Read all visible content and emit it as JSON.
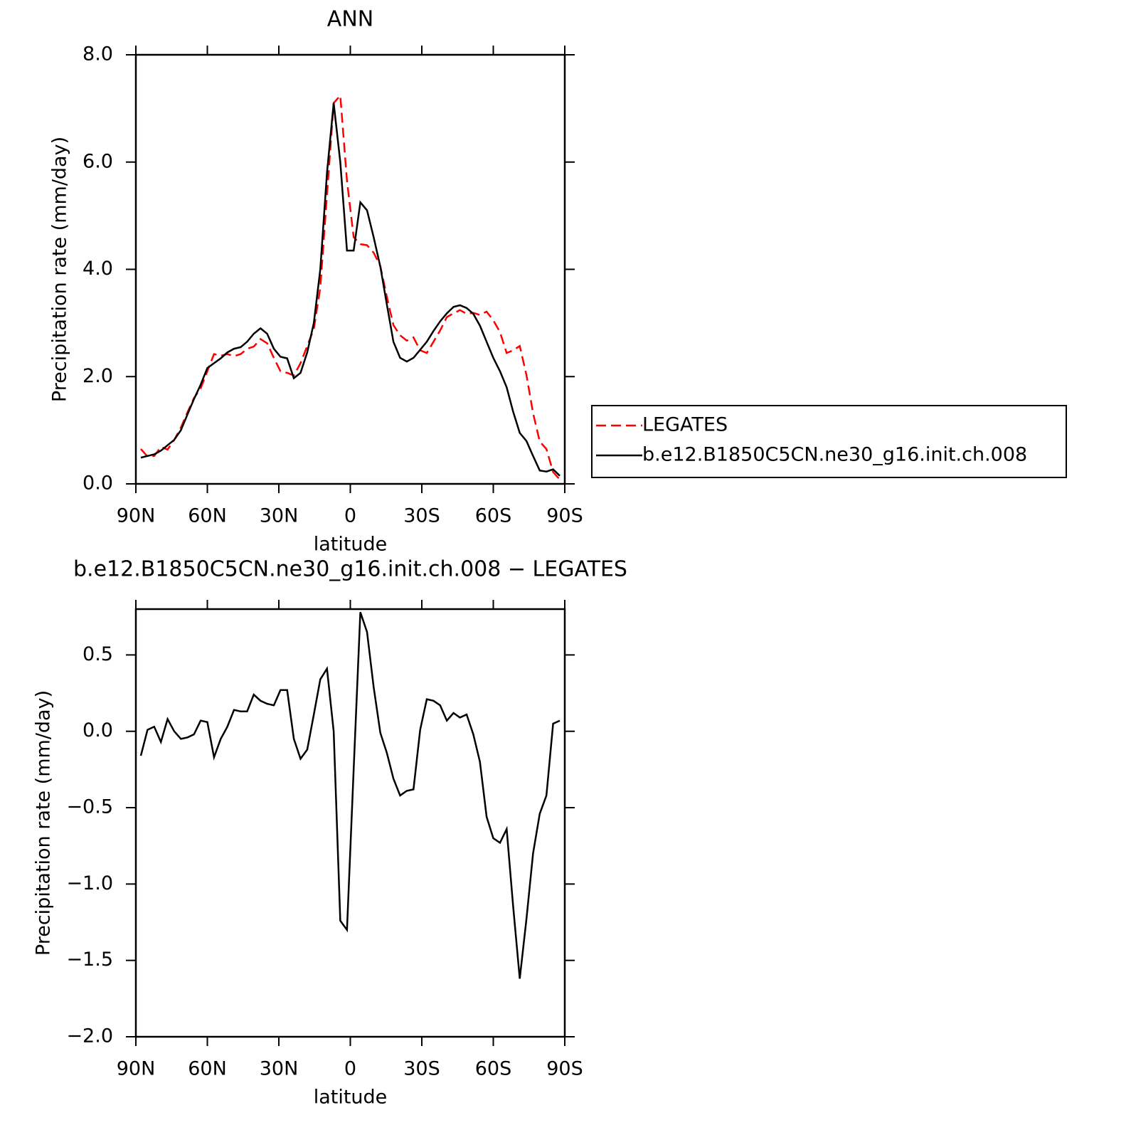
{
  "chart_data": [
    {
      "type": "line",
      "title": "ANN",
      "xlabel": "latitude",
      "ylabel": "Precipitation rate (mm/day)",
      "x": [
        87.9,
        85.1,
        82.3,
        79.5,
        76.7,
        73.9,
        71.1,
        68.3,
        65.6,
        62.8,
        60.0,
        57.2,
        54.4,
        51.6,
        48.8,
        46.0,
        43.3,
        40.5,
        37.7,
        34.9,
        32.1,
        29.3,
        26.5,
        23.7,
        20.9,
        18.1,
        15.3,
        12.6,
        9.8,
        7.0,
        4.2,
        1.4,
        -1.4,
        -4.2,
        -7.0,
        -9.8,
        -12.6,
        -15.3,
        -18.1,
        -20.9,
        -23.7,
        -26.5,
        -29.3,
        -32.1,
        -34.9,
        -37.7,
        -40.5,
        -43.3,
        -46.0,
        -48.8,
        -51.6,
        -54.4,
        -57.2,
        -60.0,
        -62.8,
        -65.6,
        -68.3,
        -71.1,
        -73.9,
        -76.7,
        -79.5,
        -82.3,
        -85.1,
        -87.9
      ],
      "series": [
        {
          "name": "LEGATES",
          "color": "#ff0000",
          "linestyle": "dashed",
          "values": [
            0.65,
            0.51,
            0.52,
            0.69,
            0.64,
            0.82,
            1.05,
            1.34,
            1.6,
            1.78,
            2.1,
            2.42,
            2.39,
            2.42,
            2.38,
            2.42,
            2.52,
            2.56,
            2.7,
            2.62,
            2.35,
            2.1,
            2.07,
            2.02,
            2.25,
            2.57,
            2.89,
            3.66,
            5.39,
            7.1,
            7.24,
            5.65,
            4.6,
            4.47,
            4.45,
            4.31,
            4.06,
            3.49,
            2.96,
            2.77,
            2.67,
            2.73,
            2.49,
            2.44,
            2.65,
            2.86,
            3.11,
            3.18,
            3.24,
            3.17,
            3.19,
            3.15,
            3.21,
            3.05,
            2.83,
            2.44,
            2.49,
            2.57,
            2.03,
            1.32,
            0.79,
            0.65,
            0.22,
            0.08
          ]
        },
        {
          "name": "b.e12.B1850C5CN.ne30_g16.init.ch.008",
          "color": "#000000",
          "linestyle": "solid",
          "values": [
            0.49,
            0.52,
            0.55,
            0.62,
            0.72,
            0.82,
            1.0,
            1.3,
            1.58,
            1.85,
            2.16,
            2.25,
            2.34,
            2.45,
            2.52,
            2.55,
            2.65,
            2.8,
            2.9,
            2.8,
            2.52,
            2.37,
            2.34,
            1.97,
            2.07,
            2.45,
            3.0,
            4.0,
            5.8,
            7.1,
            6.0,
            4.35,
            4.35,
            5.25,
            5.1,
            4.6,
            4.05,
            3.35,
            2.65,
            2.35,
            2.28,
            2.35,
            2.5,
            2.65,
            2.85,
            3.03,
            3.18,
            3.3,
            3.33,
            3.28,
            3.17,
            2.95,
            2.65,
            2.35,
            2.1,
            1.8,
            1.35,
            0.95,
            0.8,
            0.52,
            0.25,
            0.23,
            0.27,
            0.15
          ]
        }
      ],
      "xlim": [
        90,
        -90
      ],
      "xticks": [
        {
          "value": 90,
          "label": "90N"
        },
        {
          "value": 60,
          "label": "60N"
        },
        {
          "value": 30,
          "label": "30N"
        },
        0,
        {
          "value": -30,
          "label": "30S"
        },
        {
          "value": -60,
          "label": "60S"
        },
        {
          "value": -90,
          "label": "90S"
        }
      ],
      "ylim": [
        0,
        8
      ],
      "yticks": [
        {
          "value": 0,
          "label": "0.0"
        },
        {
          "value": 2,
          "label": "2.0"
        },
        {
          "value": 4,
          "label": "4.0"
        },
        {
          "value": 6,
          "label": "6.0"
        },
        {
          "value": 8,
          "label": "8.0"
        }
      ],
      "legend": "right"
    },
    {
      "type": "line",
      "title": "b.e12.B1850C5CN.ne30_g16.init.ch.008 − LEGATES",
      "xlabel": "latitude",
      "ylabel": "Precipitation rate (mm/day)",
      "x": [
        87.9,
        85.1,
        82.3,
        79.5,
        76.7,
        73.9,
        71.1,
        68.3,
        65.6,
        62.8,
        60.0,
        57.2,
        54.4,
        51.6,
        48.8,
        46.0,
        43.3,
        40.5,
        37.7,
        34.9,
        32.1,
        29.3,
        26.5,
        23.7,
        20.9,
        18.1,
        15.3,
        12.6,
        9.8,
        7.0,
        4.2,
        1.4,
        -1.4,
        -4.2,
        -7.0,
        -9.8,
        -12.6,
        -15.3,
        -18.1,
        -20.9,
        -23.7,
        -26.5,
        -29.3,
        -32.1,
        -34.9,
        -37.7,
        -40.5,
        -43.3,
        -46.0,
        -48.8,
        -51.6,
        -54.4,
        -57.2,
        -60.0,
        -62.8,
        -65.6,
        -68.3,
        -71.1,
        -73.9,
        -76.7,
        -79.5,
        -82.3,
        -85.1,
        -87.9
      ],
      "color": "#000000",
      "values": [
        -0.16,
        0.01,
        0.03,
        -0.07,
        0.08,
        0.0,
        -0.05,
        -0.04,
        -0.02,
        0.07,
        0.06,
        -0.17,
        -0.05,
        0.03,
        0.14,
        0.13,
        0.13,
        0.24,
        0.2,
        0.18,
        0.17,
        0.27,
        0.27,
        -0.05,
        -0.18,
        -0.12,
        0.11,
        0.34,
        0.41,
        0.0,
        -1.24,
        -1.3,
        -0.25,
        0.78,
        0.65,
        0.29,
        -0.01,
        -0.14,
        -0.31,
        -0.42,
        -0.39,
        -0.38,
        0.01,
        0.21,
        0.2,
        0.17,
        0.07,
        0.12,
        0.09,
        0.11,
        -0.02,
        -0.2,
        -0.56,
        -0.7,
        -0.73,
        -0.64,
        -1.14,
        -1.62,
        -1.23,
        -0.8,
        -0.54,
        -0.42,
        0.05,
        0.07
      ],
      "xlim": [
        90,
        -90
      ],
      "xticks": [
        {
          "value": 90,
          "label": "90N"
        },
        {
          "value": 60,
          "label": "60N"
        },
        {
          "value": 30,
          "label": "30N"
        },
        0,
        {
          "value": -30,
          "label": "30S"
        },
        {
          "value": -60,
          "label": "60S"
        },
        {
          "value": -90,
          "label": "90S"
        }
      ],
      "ylim": [
        -2.0,
        0.8
      ],
      "yticks": [
        {
          "value": -2,
          "label": "−2.0"
        },
        {
          "value": -1.5,
          "label": "−1.5"
        },
        {
          "value": -1,
          "label": "−1.0"
        },
        {
          "value": -0.5,
          "label": "−0.5"
        },
        {
          "value": 0,
          "label": "0.0"
        },
        0.5
      ]
    }
  ]
}
